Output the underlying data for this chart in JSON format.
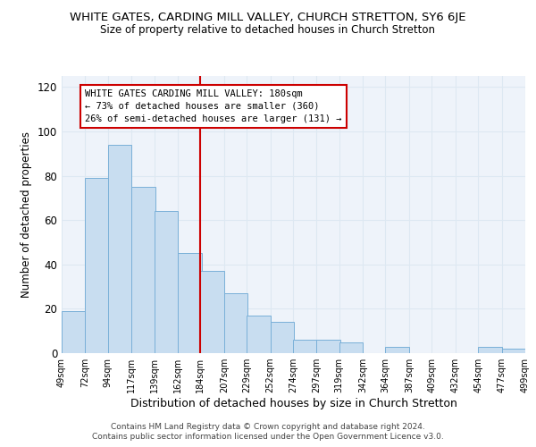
{
  "title": "WHITE GATES, CARDING MILL VALLEY, CHURCH STRETTON, SY6 6JE",
  "subtitle": "Size of property relative to detached houses in Church Stretton",
  "xlabel": "Distribution of detached houses by size in Church Stretton",
  "ylabel": "Number of detached properties",
  "bar_color": "#c8ddf0",
  "bar_edge_color": "#7ab0d8",
  "bar_left_edges": [
    49,
    72,
    94,
    117,
    139,
    162,
    184,
    207,
    229,
    252,
    274,
    297,
    319,
    342,
    364,
    387,
    409,
    432,
    454,
    477
  ],
  "bar_heights": [
    19,
    79,
    94,
    75,
    64,
    45,
    37,
    27,
    17,
    14,
    6,
    6,
    5,
    0,
    3,
    0,
    0,
    0,
    3,
    2
  ],
  "bin_width": 23,
  "tick_labels": [
    "49sqm",
    "72sqm",
    "94sqm",
    "117sqm",
    "139sqm",
    "162sqm",
    "184sqm",
    "207sqm",
    "229sqm",
    "252sqm",
    "274sqm",
    "297sqm",
    "319sqm",
    "342sqm",
    "364sqm",
    "387sqm",
    "409sqm",
    "432sqm",
    "454sqm",
    "477sqm",
    "499sqm"
  ],
  "vline_x": 184,
  "vline_color": "#cc0000",
  "ylim": [
    0,
    125
  ],
  "yticks": [
    0,
    20,
    40,
    60,
    80,
    100,
    120
  ],
  "annotation_line1": "WHITE GATES CARDING MILL VALLEY: 180sqm",
  "annotation_line2": "← 73% of detached houses are smaller (360)",
  "annotation_line3": "26% of semi-detached houses are larger (131) →",
  "footnote1": "Contains HM Land Registry data © Crown copyright and database right 2024.",
  "footnote2": "Contains public sector information licensed under the Open Government Licence v3.0.",
  "grid_color": "#dde8f2",
  "background_color": "#eef3fa"
}
